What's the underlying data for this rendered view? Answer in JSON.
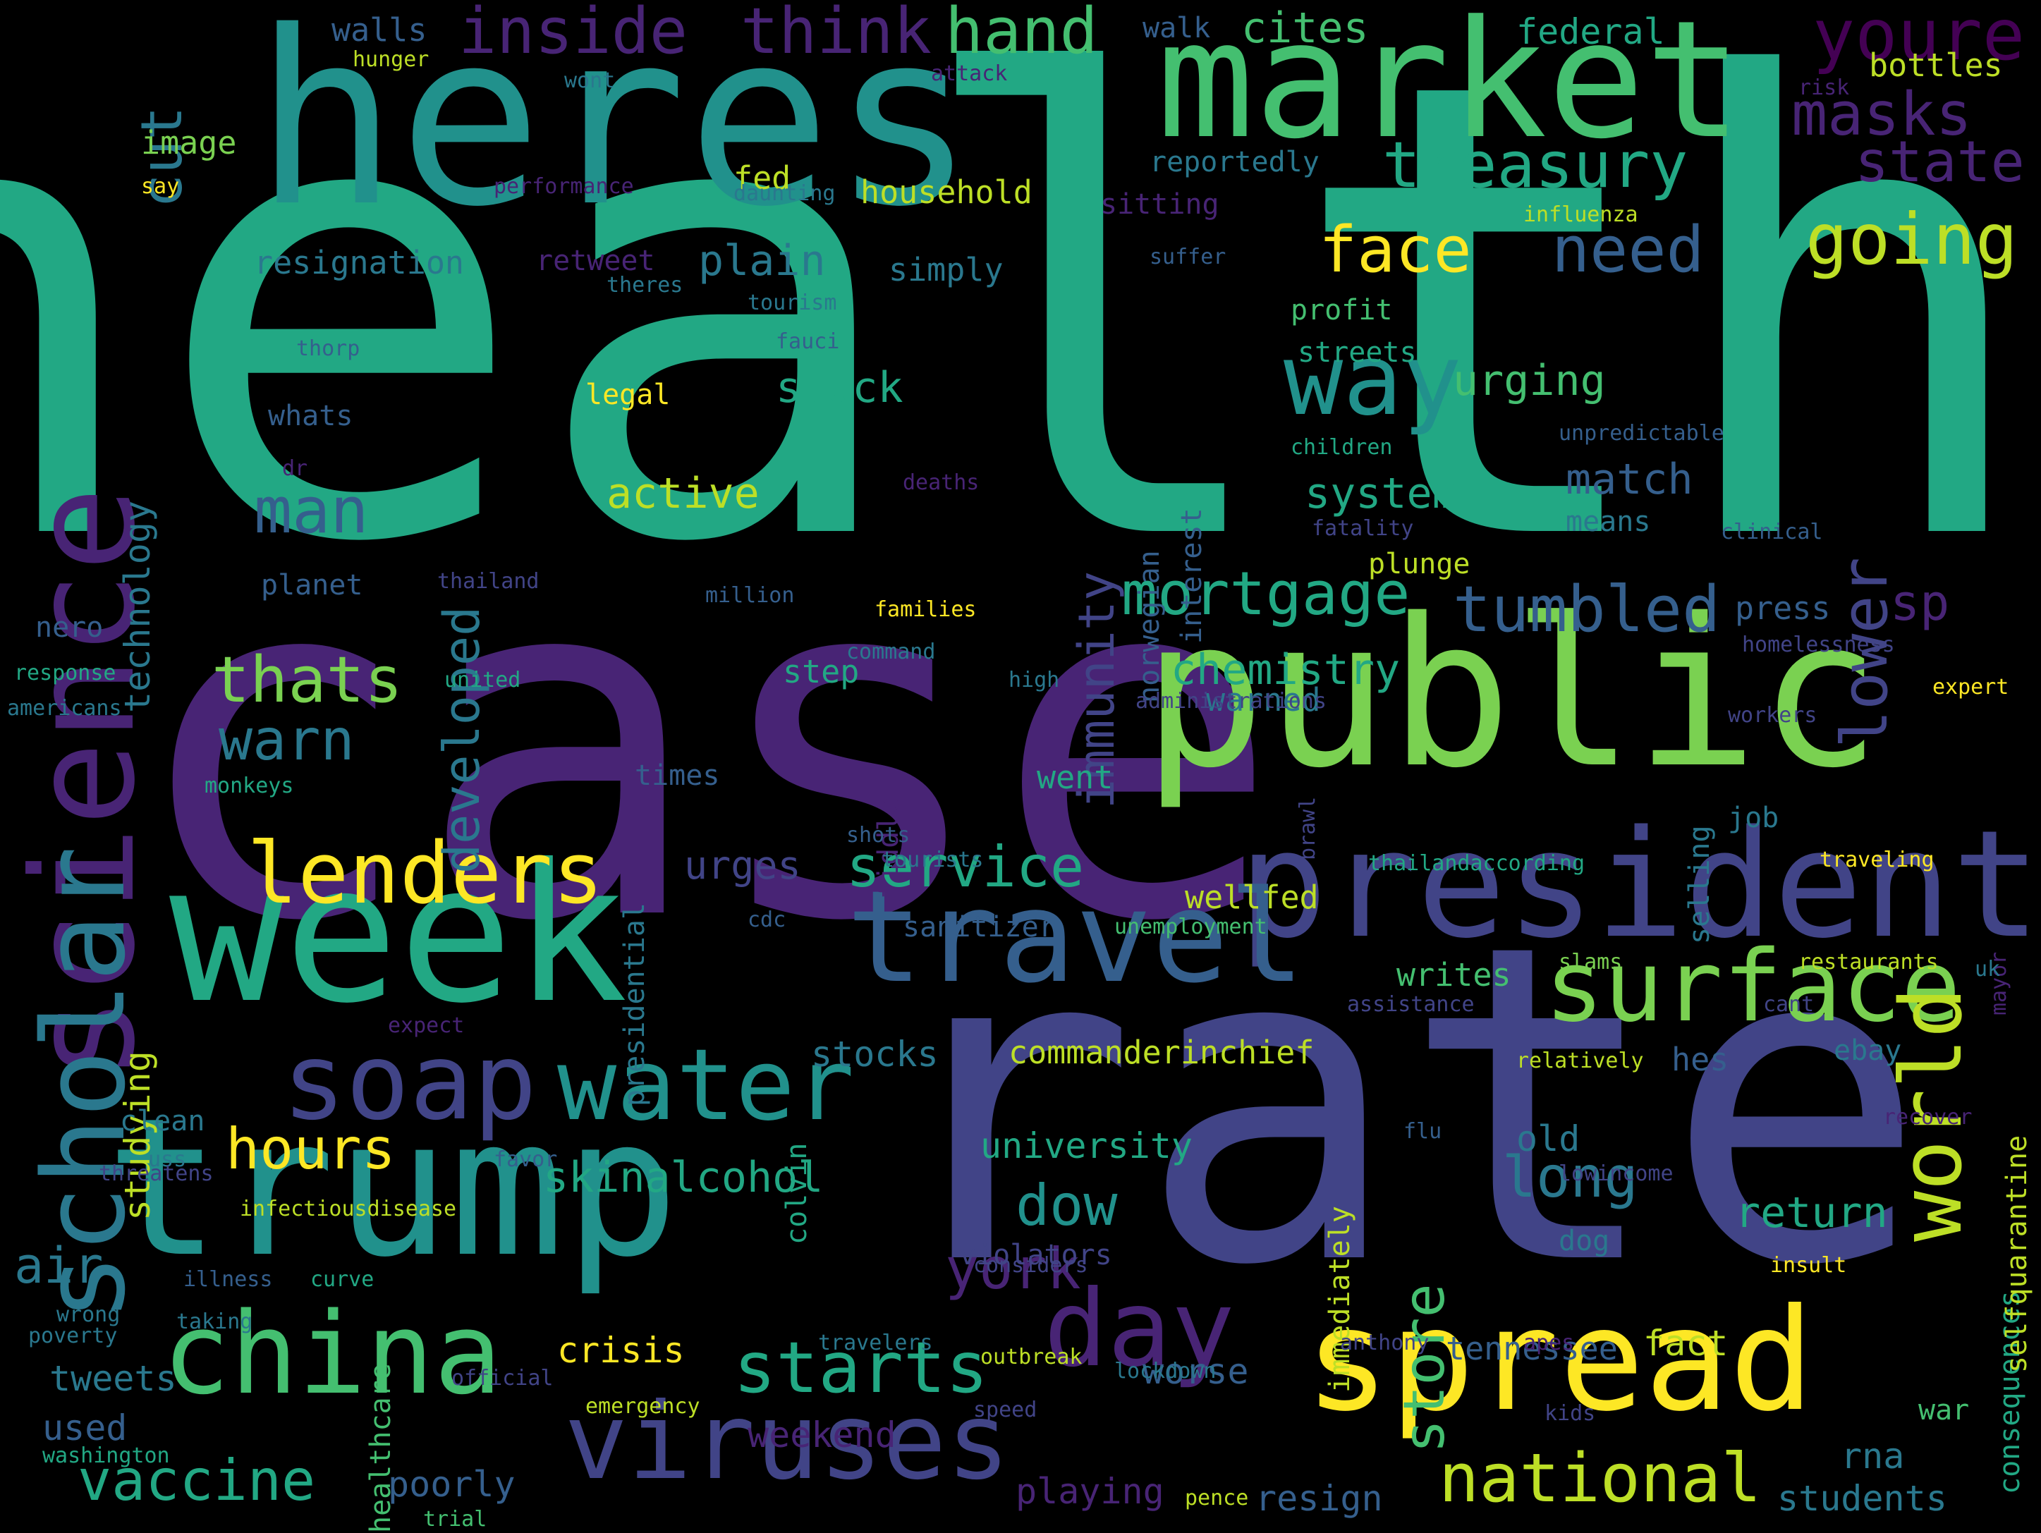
{
  "palette": {
    "background": "#000000",
    "viridis": [
      "#440154",
      "#482475",
      "#414487",
      "#355f8d",
      "#2a788e",
      "#21918c",
      "#22a884",
      "#44bf70",
      "#7ad151",
      "#bddf26",
      "#fde725"
    ]
  },
  "words": [
    {
      "text": "health",
      "color": "#22a884",
      "vertical": false
    },
    {
      "text": "case",
      "color": "#482475",
      "vertical": false
    },
    {
      "text": "rate",
      "color": "#414487",
      "vertical": false
    },
    {
      "text": "heres",
      "color": "#21918c",
      "vertical": false
    },
    {
      "text": "public",
      "color": "#7ad151",
      "vertical": false
    },
    {
      "text": "week",
      "color": "#22a884",
      "vertical": false
    },
    {
      "text": "trump",
      "color": "#21918c",
      "vertical": false
    },
    {
      "text": "market",
      "color": "#44bf70",
      "vertical": false
    },
    {
      "text": "president",
      "color": "#414487",
      "vertical": false
    },
    {
      "text": "science",
      "color": "#482475",
      "vertical": true
    },
    {
      "text": "spread",
      "color": "#fde725",
      "vertical": false
    },
    {
      "text": "travel",
      "color": "#355f8d",
      "vertical": false
    },
    {
      "text": "scholar",
      "color": "#2a788e",
      "vertical": true
    },
    {
      "text": "china",
      "color": "#44bf70",
      "vertical": false
    },
    {
      "text": "viruses",
      "color": "#414487",
      "vertical": false
    },
    {
      "text": "surface",
      "color": "#7ad151",
      "vertical": false
    },
    {
      "text": "water",
      "color": "#21918c",
      "vertical": false
    },
    {
      "text": "world",
      "color": "#bddf26",
      "vertical": true
    },
    {
      "text": "soap",
      "color": "#414487",
      "vertical": false
    },
    {
      "text": "day",
      "color": "#482475",
      "vertical": false
    },
    {
      "text": "lenders",
      "color": "#fde725",
      "vertical": false
    },
    {
      "text": "way",
      "color": "#21918c",
      "vertical": false
    },
    {
      "text": "lower",
      "color": "#414487",
      "vertical": true
    },
    {
      "text": "national",
      "color": "#bddf26",
      "vertical": false
    },
    {
      "text": "vaccine",
      "color": "#22a884",
      "vertical": false
    },
    {
      "text": "starts",
      "color": "#22a884",
      "vertical": false
    },
    {
      "text": "mortgage",
      "color": "#22a884",
      "vertical": false
    },
    {
      "text": "tumbled",
      "color": "#355f8d",
      "vertical": false
    },
    {
      "text": "treasury",
      "color": "#22a884",
      "vertical": false
    },
    {
      "text": "inside",
      "color": "#482475",
      "vertical": false
    },
    {
      "text": "think",
      "color": "#482475",
      "vertical": false
    },
    {
      "text": "hand",
      "color": "#44bf70",
      "vertical": false
    },
    {
      "text": "youre",
      "color": "#440154",
      "vertical": false
    },
    {
      "text": "masks",
      "color": "#482475",
      "vertical": false
    },
    {
      "text": "state",
      "color": "#482475",
      "vertical": false
    },
    {
      "text": "going",
      "color": "#bddf26",
      "vertical": false
    },
    {
      "text": "face",
      "color": "#fde725",
      "vertical": false
    },
    {
      "text": "need",
      "color": "#355f8d",
      "vertical": false
    },
    {
      "text": "thats",
      "color": "#7ad151",
      "vertical": false
    },
    {
      "text": "warn",
      "color": "#2a788e",
      "vertical": false
    },
    {
      "text": "man",
      "color": "#355f8d",
      "vertical": false
    },
    {
      "text": "hours",
      "color": "#fde725",
      "vertical": false
    },
    {
      "text": "service",
      "color": "#22a884",
      "vertical": false
    },
    {
      "text": "york",
      "color": "#482475",
      "vertical": false
    },
    {
      "text": "long",
      "color": "#2a788e",
      "vertical": false
    },
    {
      "text": "dow",
      "color": "#21918c",
      "vertical": false
    },
    {
      "text": "store",
      "color": "#44bf70",
      "vertical": true
    },
    {
      "text": "return",
      "color": "#22a884",
      "vertical": false
    },
    {
      "text": "sp",
      "color": "#482475",
      "vertical": false
    },
    {
      "text": "urging",
      "color": "#44bf70",
      "vertical": false
    },
    {
      "text": "cut",
      "color": "#2a788e",
      "vertical": true
    },
    {
      "text": "air",
      "color": "#2a788e",
      "vertical": false
    },
    {
      "text": "crisis",
      "color": "#fde725",
      "vertical": false
    },
    {
      "text": "chemistry",
      "color": "#22a884",
      "vertical": false
    },
    {
      "text": "active",
      "color": "#bddf26",
      "vertical": false
    },
    {
      "text": "stuck",
      "color": "#22a884",
      "vertical": false
    },
    {
      "text": "plain",
      "color": "#2a788e",
      "vertical": false
    },
    {
      "text": "system",
      "color": "#22a884",
      "vertical": false
    },
    {
      "text": "match",
      "color": "#355f8d",
      "vertical": false
    },
    {
      "text": "immunity",
      "color": "#414487",
      "vertical": true
    },
    {
      "text": "developed",
      "color": "#2a788e",
      "vertical": true
    },
    {
      "text": "technology",
      "color": "#2a788e",
      "vertical": true
    },
    {
      "text": "studying",
      "color": "#bddf26",
      "vertical": true
    },
    {
      "text": "skinalcohol",
      "color": "#22a884",
      "vertical": false
    },
    {
      "text": "university",
      "color": "#22a884",
      "vertical": false
    },
    {
      "text": "stocks",
      "color": "#2a788e",
      "vertical": false
    },
    {
      "text": "commanderinchief",
      "color": "#bddf26",
      "vertical": false
    },
    {
      "text": "urges",
      "color": "#414487",
      "vertical": false
    },
    {
      "text": "sanitizer",
      "color": "#355f8d",
      "vertical": false
    },
    {
      "text": "wellfed",
      "color": "#bddf26",
      "vertical": false
    },
    {
      "text": "writes",
      "color": "#44bf70",
      "vertical": false
    },
    {
      "text": "old",
      "color": "#2a788e",
      "vertical": false
    },
    {
      "text": "tweets",
      "color": "#2a788e",
      "vertical": false
    },
    {
      "text": "poorly",
      "color": "#355f8d",
      "vertical": false
    },
    {
      "text": "weekend",
      "color": "#482475",
      "vertical": false
    },
    {
      "text": "playing",
      "color": "#482475",
      "vertical": false
    },
    {
      "text": "resign",
      "color": "#355f8d",
      "vertical": false
    },
    {
      "text": "students",
      "color": "#2a788e",
      "vertical": false
    },
    {
      "text": "worse",
      "color": "#355f8d",
      "vertical": false
    },
    {
      "text": "fact",
      "color": "#bddf26",
      "vertical": false
    },
    {
      "text": "tennessee",
      "color": "#355f8d",
      "vertical": false
    },
    {
      "text": "rna",
      "color": "#2a788e",
      "vertical": false
    },
    {
      "text": "war",
      "color": "#44bf70",
      "vertical": false
    },
    {
      "text": "dog",
      "color": "#2a788e",
      "vertical": false
    },
    {
      "text": "ebay",
      "color": "#2a788e",
      "vertical": false
    },
    {
      "text": "hes",
      "color": "#355f8d",
      "vertical": false
    },
    {
      "text": "job",
      "color": "#2a788e",
      "vertical": false
    },
    {
      "text": "press",
      "color": "#355f8d",
      "vertical": false
    },
    {
      "text": "warned",
      "color": "#2a788e",
      "vertical": false
    },
    {
      "text": "plunge",
      "color": "#bddf26",
      "vertical": false
    },
    {
      "text": "means",
      "color": "#2a788e",
      "vertical": false
    },
    {
      "text": "profit",
      "color": "#44bf70",
      "vertical": false
    },
    {
      "text": "streets",
      "color": "#22a884",
      "vertical": false
    },
    {
      "text": "legal",
      "color": "#fde725",
      "vertical": false
    },
    {
      "text": "whats",
      "color": "#355f8d",
      "vertical": false
    },
    {
      "text": "planet",
      "color": "#355f8d",
      "vertical": false
    },
    {
      "text": "resignation",
      "color": "#2a788e",
      "vertical": false
    },
    {
      "text": "retweet",
      "color": "#482475",
      "vertical": false
    },
    {
      "text": "simply",
      "color": "#2a788e",
      "vertical": false
    },
    {
      "text": "household",
      "color": "#bddf26",
      "vertical": false
    },
    {
      "text": "fed",
      "color": "#bddf26",
      "vertical": false
    },
    {
      "text": "image",
      "color": "#7ad151",
      "vertical": false
    },
    {
      "text": "walls",
      "color": "#355f8d",
      "vertical": false
    },
    {
      "text": "cites",
      "color": "#44bf70",
      "vertical": false
    },
    {
      "text": "federal",
      "color": "#22a884",
      "vertical": false
    },
    {
      "text": "bottles",
      "color": "#bddf26",
      "vertical": false
    },
    {
      "text": "reportedly",
      "color": "#2a788e",
      "vertical": false
    },
    {
      "text": "walk",
      "color": "#355f8d",
      "vertical": false
    },
    {
      "text": "sitting",
      "color": "#482475",
      "vertical": false
    },
    {
      "text": "influenza",
      "color": "#bddf26",
      "vertical": false
    },
    {
      "text": "clean",
      "color": "#2a788e",
      "vertical": false
    },
    {
      "text": "nero",
      "color": "#355f8d",
      "vertical": false
    },
    {
      "text": "step",
      "color": "#22a884",
      "vertical": false
    },
    {
      "text": "went",
      "color": "#22a884",
      "vertical": false
    },
    {
      "text": "times",
      "color": "#355f8d",
      "vertical": false
    },
    {
      "text": "used",
      "color": "#355f8d",
      "vertical": false
    },
    {
      "text": "norwegian",
      "color": "#355f8d",
      "vertical": true
    },
    {
      "text": "interest",
      "color": "#355f8d",
      "vertical": true
    },
    {
      "text": "presidential",
      "color": "#2a788e",
      "vertical": true
    },
    {
      "text": "fiddle",
      "color": "#482475",
      "vertical": true
    },
    {
      "text": "colvin",
      "color": "#22a884",
      "vertical": true
    },
    {
      "text": "selling",
      "color": "#2a788e",
      "vertical": true
    },
    {
      "text": "immediately",
      "color": "#bddf26",
      "vertical": true
    },
    {
      "text": "consequences",
      "color": "#22a884",
      "vertical": true
    },
    {
      "text": "selfquarantine",
      "color": "#bddf26",
      "vertical": true
    },
    {
      "text": "healthcare",
      "color": "#44bf70",
      "vertical": true
    },
    {
      "text": "violators",
      "color": "#414487",
      "vertical": false
    },
    {
      "text": "hunger",
      "color": "#bddf26",
      "vertical": false
    },
    {
      "text": "wont",
      "color": "#2a788e",
      "vertical": false
    },
    {
      "text": "attack",
      "color": "#482475",
      "vertical": false
    },
    {
      "text": "risk",
      "color": "#482475",
      "vertical": false
    },
    {
      "text": "say",
      "color": "#fde725",
      "vertical": false
    },
    {
      "text": "performance",
      "color": "#482475",
      "vertical": false
    },
    {
      "text": "daunting",
      "color": "#2a788e",
      "vertical": false
    },
    {
      "text": "suffer",
      "color": "#355f8d",
      "vertical": false
    },
    {
      "text": "theres",
      "color": "#2a788e",
      "vertical": false
    },
    {
      "text": "tourism",
      "color": "#2a788e",
      "vertical": false
    },
    {
      "text": "thorp",
      "color": "#355f8d",
      "vertical": false
    },
    {
      "text": "fauci",
      "color": "#355f8d",
      "vertical": false
    },
    {
      "text": "unpredictable",
      "color": "#355f8d",
      "vertical": false
    },
    {
      "text": "children",
      "color": "#22a884",
      "vertical": false
    },
    {
      "text": "dr",
      "color": "#482475",
      "vertical": false
    },
    {
      "text": "deaths",
      "color": "#482475",
      "vertical": false
    },
    {
      "text": "fatality",
      "color": "#414487",
      "vertical": false
    },
    {
      "text": "clinical",
      "color": "#355f8d",
      "vertical": false
    },
    {
      "text": "thailand",
      "color": "#414487",
      "vertical": false
    },
    {
      "text": "million",
      "color": "#355f8d",
      "vertical": false
    },
    {
      "text": "families",
      "color": "#fde725",
      "vertical": false
    },
    {
      "text": "command",
      "color": "#2a788e",
      "vertical": false
    },
    {
      "text": "homelessness",
      "color": "#414487",
      "vertical": false
    },
    {
      "text": "response",
      "color": "#22a884",
      "vertical": false
    },
    {
      "text": "united",
      "color": "#22a884",
      "vertical": false
    },
    {
      "text": "high",
      "color": "#2a788e",
      "vertical": false
    },
    {
      "text": "expert",
      "color": "#fde725",
      "vertical": false
    },
    {
      "text": "americans",
      "color": "#2a788e",
      "vertical": false
    },
    {
      "text": "administrations",
      "color": "#414487",
      "vertical": false
    },
    {
      "text": "workers",
      "color": "#414487",
      "vertical": false
    },
    {
      "text": "monkeys",
      "color": "#22a884",
      "vertical": false
    },
    {
      "text": "brawl",
      "color": "#414487",
      "vertical": true
    },
    {
      "text": "shots",
      "color": "#355f8d",
      "vertical": false
    },
    {
      "text": "tourists",
      "color": "#2a788e",
      "vertical": false
    },
    {
      "text": "thailandaccording",
      "color": "#22a884",
      "vertical": false
    },
    {
      "text": "traveling",
      "color": "#fde725",
      "vertical": false
    },
    {
      "text": "cdc",
      "color": "#355f8d",
      "vertical": false
    },
    {
      "text": "unemployment",
      "color": "#44bf70",
      "vertical": false
    },
    {
      "text": "mayor",
      "color": "#482475",
      "vertical": true
    },
    {
      "text": "slams",
      "color": "#7ad151",
      "vertical": false
    },
    {
      "text": "restaurants",
      "color": "#bddf26",
      "vertical": false
    },
    {
      "text": "uk",
      "color": "#2a788e",
      "vertical": false
    },
    {
      "text": "assistance",
      "color": "#414487",
      "vertical": false
    },
    {
      "text": "cant",
      "color": "#414487",
      "vertical": false
    },
    {
      "text": "expect",
      "color": "#482475",
      "vertical": false
    },
    {
      "text": "relatively",
      "color": "#bddf26",
      "vertical": false
    },
    {
      "text": "flu",
      "color": "#355f8d",
      "vertical": false
    },
    {
      "text": "recover",
      "color": "#482475",
      "vertical": false
    },
    {
      "text": "uss",
      "color": "#2a788e",
      "vertical": false
    },
    {
      "text": "favor",
      "color": "#355f8d",
      "vertical": false
    },
    {
      "text": "lowincome",
      "color": "#414487",
      "vertical": false
    },
    {
      "text": "threatens",
      "color": "#414487",
      "vertical": false
    },
    {
      "text": "infectiousdisease",
      "color": "#bddf26",
      "vertical": false
    },
    {
      "text": "considers",
      "color": "#414487",
      "vertical": false
    },
    {
      "text": "insult",
      "color": "#fde725",
      "vertical": false
    },
    {
      "text": "illness",
      "color": "#355f8d",
      "vertical": false
    },
    {
      "text": "curve",
      "color": "#22a884",
      "vertical": false
    },
    {
      "text": "wrong",
      "color": "#2a788e",
      "vertical": false
    },
    {
      "text": "taking",
      "color": "#2a788e",
      "vertical": false
    },
    {
      "text": "poverty",
      "color": "#2a788e",
      "vertical": false
    },
    {
      "text": "travelers",
      "color": "#2a788e",
      "vertical": false
    },
    {
      "text": "anthony",
      "color": "#414487",
      "vertical": false
    },
    {
      "text": "apes",
      "color": "#482475",
      "vertical": false
    },
    {
      "text": "outbreak",
      "color": "#bddf26",
      "vertical": false
    },
    {
      "text": "lockdown",
      "color": "#2a788e",
      "vertical": false
    },
    {
      "text": "official",
      "color": "#414487",
      "vertical": false
    },
    {
      "text": "emergency",
      "color": "#bddf26",
      "vertical": false
    },
    {
      "text": "speed",
      "color": "#414487",
      "vertical": false
    },
    {
      "text": "kids",
      "color": "#414487",
      "vertical": false
    },
    {
      "text": "washington",
      "color": "#22a884",
      "vertical": false
    },
    {
      "text": "trial",
      "color": "#44bf70",
      "vertical": false
    },
    {
      "text": "pence",
      "color": "#bddf26",
      "vertical": false
    }
  ]
}
